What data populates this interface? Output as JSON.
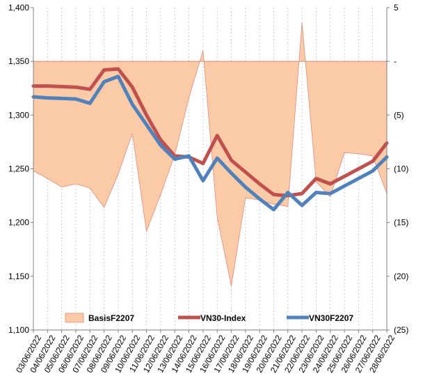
{
  "chart_data": {
    "type": "line",
    "categories": [
      "03/06/2022",
      "04/06/2022",
      "05/06/2022",
      "06/06/2022",
      "07/06/2022",
      "08/06/2022",
      "09/06/2022",
      "10/06/2022",
      "11/06/2022",
      "12/06/2022",
      "13/06/2022",
      "14/06/2022",
      "15/06/2022",
      "16/06/2022",
      "17/06/2022",
      "18/06/2022",
      "19/06/2022",
      "20/06/2022",
      "21/06/2022",
      "22/06/2022",
      "23/06/2022",
      "24/06/2022",
      "25/06/2022",
      "26/06/2022",
      "27/06/2022",
      "28/06/2022"
    ],
    "y_left": {
      "min": 1100,
      "max": 1400,
      "ticks": [
        "1,100",
        "1,150",
        "1,200",
        "1,250",
        "1,300",
        "1,350",
        "1,400"
      ]
    },
    "y_right": {
      "min": -25,
      "max": 5,
      "ticks": [
        "(25)",
        "(20)",
        "(15)",
        "(10)",
        "(5)",
        "-",
        "5"
      ]
    },
    "series": [
      {
        "name": "BasisF2207",
        "kind": "area",
        "axis": "right",
        "color": "#fbcaa6",
        "edge": "#e08a7c",
        "values": [
          -10.2,
          -10.9,
          -11.7,
          -11.4,
          -11.8,
          -13.6,
          -10.5,
          -6.7,
          -15.8,
          -12.4,
          -8.7,
          -3.4,
          1.0,
          -14.5,
          -20.9,
          -12.7,
          -12.9,
          -13.3,
          -13.5,
          3.6,
          -11.2,
          -12.6,
          -8.5,
          -8.6,
          -8.8,
          -12.3
        ]
      },
      {
        "name": "VN30-Index",
        "kind": "line",
        "axis": "left",
        "color": "#c0504d",
        "values": [
          1327,
          1327,
          1326.5,
          1326,
          1324,
          1342,
          1343,
          1326,
          1300,
          1277,
          1262,
          1261,
          1255,
          1281,
          1258,
          1247,
          1236,
          1226,
          1225,
          1227,
          1241,
          1236,
          1243,
          1250,
          1257,
          1274
        ]
      },
      {
        "name": "VN30F2207",
        "kind": "line",
        "axis": "left",
        "color": "#4f81bd",
        "values": [
          1317,
          1316,
          1315.5,
          1315,
          1311,
          1331,
          1336,
          1310,
          1291,
          1272,
          1259,
          1262,
          1239,
          1260,
          1246,
          1233,
          1222,
          1212,
          1228,
          1216,
          1228,
          1227,
          1234,
          1241,
          1248,
          1261
        ]
      }
    ]
  }
}
